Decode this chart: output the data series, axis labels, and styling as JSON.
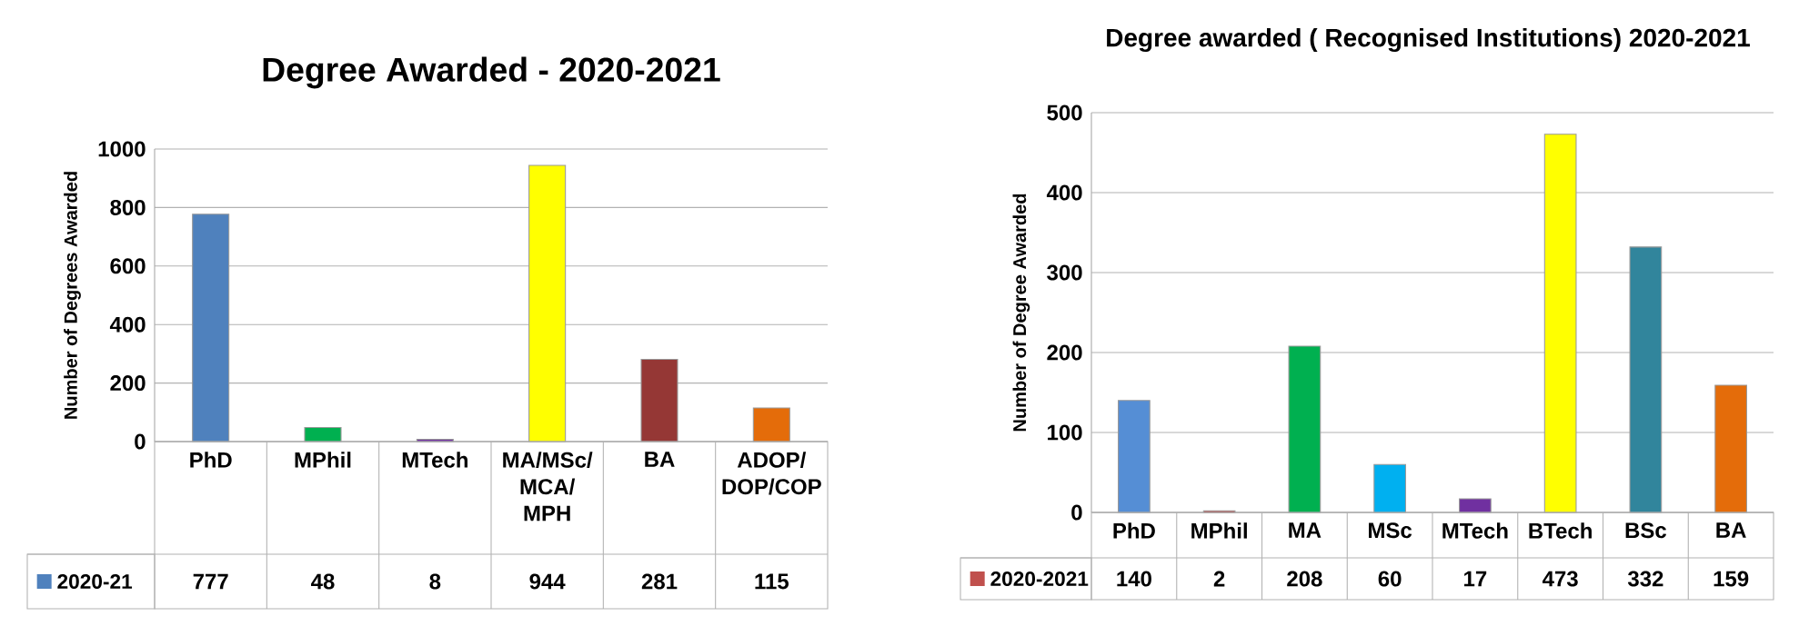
{
  "chart_data": [
    {
      "type": "bar",
      "title": "Degree Awarded - 2020-2021",
      "ylabel": "Number of Degrees Awarded",
      "categories": [
        "PhD",
        "MPhil",
        "MTech",
        "MA/MSc/MCA/MPH",
        "BA",
        "ADOP/DOP/COP"
      ],
      "series": [
        {
          "name": "2020-21",
          "color": "#4f81bd",
          "colors": [
            "#4f81bd",
            "#00b050",
            "#7030a0",
            "#ffff00",
            "#953735",
            "#e46c0a"
          ],
          "values": [
            777,
            48,
            8,
            944,
            281,
            115
          ]
        }
      ],
      "ylim": [
        0,
        1000
      ],
      "yticks": [
        0,
        200,
        400,
        600,
        800,
        1000
      ],
      "grid": "y",
      "data_labels": true,
      "legend": "bottom"
    },
    {
      "type": "bar",
      "title": "Degree awarded ( Recognised Institutions) 2020-2021",
      "ylabel": "Number of Degree Awarded",
      "categories": [
        "PhD",
        "MPhil",
        "MA",
        "MSc",
        "MTech",
        "BTech",
        "BSc",
        "BA"
      ],
      "series": [
        {
          "name": "2020-2021",
          "color": "#c0504d",
          "colors": [
            "#558ed5",
            "#c00000",
            "#00b050",
            "#00b0f0",
            "#7030a0",
            "#ffff00",
            "#31859c",
            "#e46c0a"
          ],
          "values": [
            140,
            2,
            208,
            60,
            17,
            473,
            332,
            159
          ]
        }
      ],
      "ylim": [
        0,
        500
      ],
      "yticks": [
        0,
        100,
        200,
        300,
        400,
        500
      ],
      "grid": "y",
      "data_labels": true,
      "legend": "bottom"
    }
  ]
}
